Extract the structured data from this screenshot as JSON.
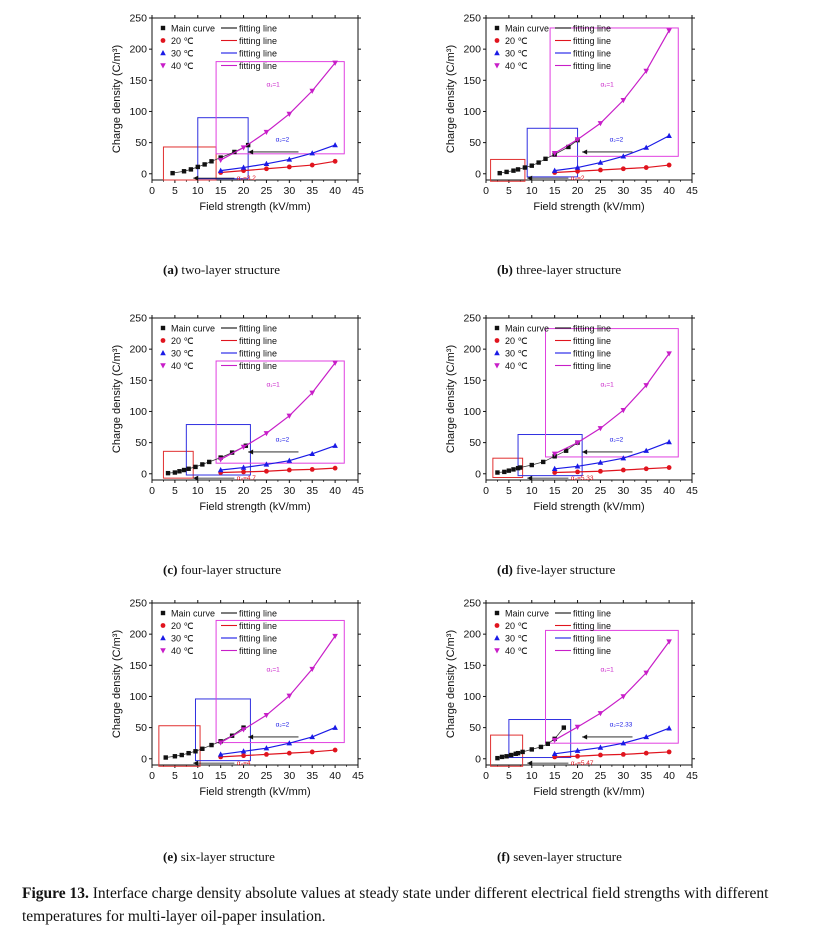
{
  "figure": {
    "caption_label": "Figure 13.",
    "caption_text": "Interface charge density absolute values at steady state under different electrical field strengths with different temperatures for multi-layer oil-paper insulation."
  },
  "legend": {
    "entries": [
      "Main curve",
      "20 ℃",
      "30 ℃",
      "40 ℃"
    ],
    "fit_label": "fitting line"
  },
  "colors": {
    "main": "#111111",
    "t20": "#e0141e",
    "t30": "#1a1ae6",
    "t40": "#c81ec8",
    "fit_main": "#333333",
    "box20": "#e03030",
    "box30": "#3030e0",
    "box40": "#e040e0"
  },
  "chart_data": [
    {
      "type": "scatter",
      "panel_letter": "(a)",
      "title": "two-layer structure",
      "xlabel": "Field strength (kV/mm)",
      "ylabel": "Charge density (C/m³)",
      "xlim": [
        0,
        45
      ],
      "ylim": [
        -10,
        250
      ],
      "xticks": [
        "0",
        "5",
        "10",
        "15",
        "20",
        "25",
        "30",
        "35",
        "40",
        "45"
      ],
      "yticks": [
        "0",
        "50",
        "100",
        "150",
        "200",
        "250"
      ],
      "series": [
        {
          "name": "Main curve",
          "x": [
            4.5,
            7,
            8.5,
            10,
            11.5,
            13,
            15,
            18,
            21
          ],
          "y": [
            1,
            4,
            7,
            11,
            15,
            20,
            26,
            35,
            46
          ]
        },
        {
          "name": "20 ℃",
          "x": [
            15,
            20,
            25,
            30,
            35,
            40
          ],
          "y": [
            2,
            5,
            8,
            11,
            14,
            20
          ]
        },
        {
          "name": "30 ℃",
          "x": [
            15,
            20,
            25,
            30,
            35,
            40
          ],
          "y": [
            5,
            10,
            16,
            23,
            33,
            46
          ]
        },
        {
          "name": "40 ℃",
          "x": [
            15,
            20,
            25,
            30,
            35,
            40
          ],
          "y": [
            22,
            42,
            67,
            96,
            133,
            178
          ]
        }
      ],
      "annotations": [
        "α₁=1",
        "α₂=2",
        "α₃=3.2"
      ],
      "boxes": {
        "b20": [
          2.5,
          14,
          -10,
          43
        ],
        "b30": [
          10,
          21,
          -8,
          90
        ],
        "b40": [
          14,
          42,
          32,
          180
        ]
      }
    },
    {
      "type": "scatter",
      "panel_letter": "(b)",
      "title": "three-layer structure",
      "xlabel": "Field strength (kV/mm)",
      "ylabel": "Charge density (C/m³)",
      "xlim": [
        0,
        45
      ],
      "ylim": [
        -10,
        250
      ],
      "xticks": [
        "0",
        "5",
        "10",
        "15",
        "20",
        "25",
        "30",
        "35",
        "40",
        "45"
      ],
      "yticks": [
        "0",
        "50",
        "100",
        "150",
        "200",
        "250"
      ],
      "series": [
        {
          "name": "Main curve",
          "x": [
            3,
            4.5,
            6,
            7,
            8.5,
            10,
            11.5,
            13,
            15,
            18,
            20
          ],
          "y": [
            1,
            3,
            5,
            7,
            10,
            13,
            18,
            24,
            31,
            43,
            54
          ]
        },
        {
          "name": "20 ℃",
          "x": [
            15,
            20,
            25,
            30,
            35,
            40
          ],
          "y": [
            2,
            4,
            6,
            8,
            10,
            14
          ]
        },
        {
          "name": "30 ℃",
          "x": [
            15,
            20,
            25,
            30,
            35,
            40
          ],
          "y": [
            5,
            10,
            18,
            28,
            42,
            61
          ]
        },
        {
          "name": "40 ℃",
          "x": [
            15,
            20,
            25,
            30,
            35,
            40
          ],
          "y": [
            33,
            55,
            81,
            118,
            165,
            230
          ]
        }
      ],
      "annotations": [
        "α₁=1",
        "α₂=2",
        "α₃=2"
      ],
      "boxes": {
        "b20": [
          1,
          8.5,
          -12,
          23
        ],
        "b30": [
          9,
          20,
          -5,
          73
        ],
        "b40": [
          14,
          42,
          28,
          234
        ]
      }
    },
    {
      "type": "scatter",
      "panel_letter": "(c)",
      "title": "four-layer structure",
      "xlabel": "Field strength (kV/mm)",
      "ylabel": "Charge density (C/m³)",
      "xlim": [
        0,
        45
      ],
      "ylim": [
        -10,
        250
      ],
      "xticks": [
        "0",
        "5",
        "10",
        "15",
        "20",
        "25",
        "30",
        "35",
        "40",
        "45"
      ],
      "yticks": [
        "0",
        "50",
        "100",
        "150",
        "200",
        "250"
      ],
      "series": [
        {
          "name": "Main curve",
          "x": [
            3.5,
            5,
            6,
            7,
            8,
            9.5,
            11,
            12.5,
            15,
            17.5,
            20.5
          ],
          "y": [
            1,
            2,
            4,
            6,
            8,
            11,
            15,
            19,
            26,
            34,
            45
          ]
        },
        {
          "name": "20 ℃",
          "x": [
            15,
            20,
            25,
            30,
            35,
            40
          ],
          "y": [
            2,
            3,
            4,
            6,
            7,
            9
          ]
        },
        {
          "name": "30 ℃",
          "x": [
            15,
            20,
            25,
            30,
            35,
            40
          ],
          "y": [
            6,
            10,
            15,
            21,
            32,
            45
          ]
        },
        {
          "name": "40 ℃",
          "x": [
            15,
            20,
            25,
            30,
            35,
            40
          ],
          "y": [
            23,
            43,
            65,
            93,
            130,
            178
          ]
        }
      ],
      "annotations": [
        "α₁=1",
        "α₂=2",
        "α₃=4.7"
      ],
      "boxes": {
        "b20": [
          2.5,
          9,
          -7,
          36
        ],
        "b30": [
          7.5,
          21.5,
          -2,
          79
        ],
        "b40": [
          14,
          42,
          17,
          181
        ]
      }
    },
    {
      "type": "scatter",
      "panel_letter": "(d)",
      "title": "five-layer structure",
      "xlabel": "Field strength (kV/mm)",
      "ylabel": "Charge density (C/m³)",
      "xlim": [
        0,
        45
      ],
      "ylim": [
        -10,
        250
      ],
      "xticks": [
        "0",
        "5",
        "10",
        "15",
        "20",
        "25",
        "30",
        "35",
        "40",
        "45"
      ],
      "yticks": [
        "0",
        "50",
        "100",
        "150",
        "200",
        "250"
      ],
      "series": [
        {
          "name": "Main curve",
          "x": [
            2.5,
            4,
            5,
            6,
            7,
            7.5,
            10,
            12.5,
            15,
            17.5,
            20
          ],
          "y": [
            2,
            3,
            5,
            7,
            9,
            10,
            14,
            19,
            28,
            37,
            50
          ]
        },
        {
          "name": "20 ℃",
          "x": [
            15,
            20,
            25,
            30,
            35,
            40
          ],
          "y": [
            2,
            3,
            4,
            6,
            8,
            10
          ]
        },
        {
          "name": "30 ℃",
          "x": [
            15,
            20,
            25,
            30,
            35,
            40
          ],
          "y": [
            8,
            12,
            18,
            25,
            37,
            51
          ]
        },
        {
          "name": "40 ℃",
          "x": [
            15,
            20,
            25,
            30,
            35,
            40
          ],
          "y": [
            32,
            50,
            73,
            102,
            142,
            193
          ]
        }
      ],
      "annotations": [
        "α₁=1",
        "α₂=2",
        "α₃=5.33"
      ],
      "boxes": {
        "b20": [
          1.5,
          8,
          -6,
          25
        ],
        "b30": [
          7,
          21,
          -3,
          63
        ],
        "b40": [
          13,
          42,
          27,
          233
        ]
      }
    },
    {
      "type": "scatter",
      "panel_letter": "(e)",
      "title": "six-layer structure",
      "xlabel": "Field strength (kV/mm)",
      "ylabel": "Charge density (C/m³)",
      "xlim": [
        0,
        45
      ],
      "ylim": [
        -10,
        250
      ],
      "xticks": [
        "0",
        "5",
        "10",
        "15",
        "20",
        "25",
        "30",
        "35",
        "40",
        "45"
      ],
      "yticks": [
        "0",
        "50",
        "100",
        "150",
        "200",
        "250"
      ],
      "series": [
        {
          "name": "Main curve",
          "x": [
            3,
            5,
            6.5,
            8,
            9.5,
            11,
            13,
            15,
            17.5,
            20
          ],
          "y": [
            2,
            4,
            6,
            9,
            12,
            16,
            22,
            28,
            37,
            50
          ]
        },
        {
          "name": "20 ℃",
          "x": [
            15,
            20,
            25,
            30,
            35,
            40
          ],
          "y": [
            3,
            5,
            7,
            9,
            11,
            14
          ]
        },
        {
          "name": "30 ℃",
          "x": [
            15,
            20,
            25,
            30,
            35,
            40
          ],
          "y": [
            7,
            12,
            17,
            25,
            35,
            50
          ]
        },
        {
          "name": "40 ℃",
          "x": [
            15,
            20,
            25,
            30,
            35,
            40
          ],
          "y": [
            26,
            47,
            70,
            101,
            144,
            197
          ]
        }
      ],
      "annotations": [
        "α₁=1",
        "α₂=2",
        "α₃=4"
      ],
      "boxes": {
        "b20": [
          1.5,
          10.5,
          -12,
          53
        ],
        "b30": [
          9.5,
          21.5,
          -3,
          96
        ],
        "b40": [
          14,
          42,
          26,
          222
        ]
      }
    },
    {
      "type": "scatter",
      "panel_letter": "(f)",
      "title": "seven-layer structure",
      "xlabel": "Field strength (kV/mm)",
      "ylabel": "Charge density (C/m³)",
      "xlim": [
        0,
        45
      ],
      "ylim": [
        -10,
        250
      ],
      "xticks": [
        "0",
        "5",
        "10",
        "15",
        "20",
        "25",
        "30",
        "35",
        "40",
        "45"
      ],
      "yticks": [
        "0",
        "50",
        "100",
        "150",
        "200",
        "250"
      ],
      "series": [
        {
          "name": "Main curve",
          "x": [
            2.5,
            3.5,
            4.5,
            5.5,
            6.5,
            7,
            8,
            10,
            12,
            13.5,
            15,
            17
          ],
          "y": [
            1,
            3,
            4,
            6,
            8,
            9,
            11,
            15,
            19,
            24,
            32,
            50
          ]
        },
        {
          "name": "20 ℃",
          "x": [
            15,
            20,
            25,
            30,
            35,
            40
          ],
          "y": [
            3,
            4,
            6,
            7,
            9,
            11
          ]
        },
        {
          "name": "30 ℃",
          "x": [
            15,
            20,
            25,
            30,
            35,
            40
          ],
          "y": [
            8,
            13,
            18,
            25,
            35,
            49
          ]
        },
        {
          "name": "40 ℃",
          "x": [
            15,
            20,
            25,
            30,
            35,
            40
          ],
          "y": [
            30,
            51,
            73,
            100,
            138,
            188
          ]
        }
      ],
      "annotations": [
        "α₁=1",
        "α₂=2.33",
        "α₃=5.47"
      ],
      "boxes": {
        "b20": [
          1,
          8,
          -12,
          38
        ],
        "b30": [
          5,
          18.5,
          2,
          63
        ],
        "b40": [
          13,
          42,
          25,
          206
        ]
      }
    }
  ]
}
